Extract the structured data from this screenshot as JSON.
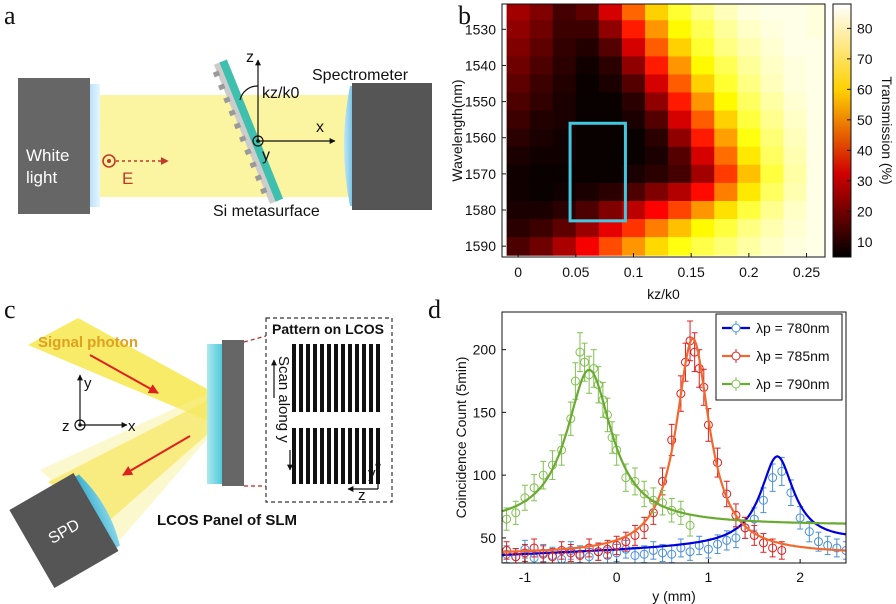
{
  "panels": {
    "a": {
      "label": "a",
      "source_label": "White light",
      "source_line1": "White",
      "source_line2": "light",
      "field_label": "E",
      "axis_z": "z",
      "axis_y": "y",
      "axis_x": "x",
      "kz_label": "kz/k0",
      "detector_label": "Spectrometer",
      "sample_label": "Si metasurface",
      "colors": {
        "beam": "#fbf4a0",
        "metasurface": "#3fbfae",
        "housing": "#666666",
        "field": "#c0392b"
      }
    },
    "b": {
      "label": "b"
    },
    "c": {
      "label": "c",
      "signal_label": "Signal photon",
      "axis_y": "y",
      "axis_z": "z",
      "axis_x": "x",
      "pattern_title": "Pattern on LCOS",
      "scan_label": "Scan along y",
      "inset_axis_y": "y",
      "inset_axis_z": "z",
      "panel_caption": "LCOS Panel of SLM",
      "detector_label": "SPD",
      "colors": {
        "beam": "#f3df38",
        "signal_text": "#e0a020",
        "arrow": "#e02020"
      }
    },
    "d": {
      "label": "d"
    }
  },
  "chart_data": [
    {
      "type": "heatmap",
      "panel": "b",
      "xlabel": "kz/k0",
      "ylabel": "Wavelength(nm)",
      "colorbar_label": "Transmission (%)",
      "x_ticks": [
        "0",
        "0.05",
        "0.1",
        "0.15",
        "0.2",
        "0.25"
      ],
      "y_ticks": [
        "1530",
        "1540",
        "1550",
        "1560",
        "1570",
        "1580",
        "1590"
      ],
      "colorbar_ticks": [
        "10",
        "20",
        "30",
        "40",
        "50",
        "60",
        "70",
        "80"
      ],
      "xlim": [
        -0.014,
        0.266
      ],
      "ylim": [
        1523,
        1593
      ],
      "clim": [
        5,
        88
      ],
      "colormap": "hot",
      "kz_values": [
        0,
        0.02,
        0.04,
        0.06,
        0.08,
        0.1,
        0.12,
        0.14,
        0.16,
        0.18,
        0.2,
        0.22,
        0.24,
        0.26
      ],
      "wavelengths": [
        1525,
        1530,
        1535,
        1540,
        1545,
        1550,
        1555,
        1560,
        1565,
        1570,
        1575,
        1580,
        1585,
        1590
      ],
      "transmission": [
        [
          24,
          20,
          13,
          16,
          30,
          47,
          60,
          70,
          77,
          82,
          85,
          86,
          86,
          85
        ],
        [
          22,
          18,
          12,
          12,
          22,
          38,
          53,
          65,
          73,
          79,
          83,
          85,
          86,
          85
        ],
        [
          20,
          16,
          11,
          9,
          15,
          30,
          46,
          60,
          70,
          77,
          81,
          84,
          86,
          86
        ],
        [
          18,
          14,
          10,
          7,
          10,
          22,
          38,
          53,
          65,
          73,
          79,
          83,
          85,
          86
        ],
        [
          16,
          12,
          9,
          6,
          8,
          15,
          30,
          46,
          60,
          70,
          77,
          82,
          85,
          86
        ],
        [
          14,
          11,
          8,
          6,
          6,
          10,
          22,
          38,
          53,
          65,
          74,
          80,
          84,
          86
        ],
        [
          12,
          9,
          8,
          6,
          6,
          8,
          15,
          30,
          46,
          60,
          71,
          78,
          83,
          86
        ],
        [
          10,
          8,
          7,
          6,
          6,
          6,
          10,
          22,
          38,
          54,
          67,
          76,
          82,
          86
        ],
        [
          8,
          7,
          7,
          6,
          6,
          6,
          8,
          15,
          30,
          48,
          63,
          74,
          81,
          86
        ],
        [
          7,
          6,
          6,
          6,
          6,
          8,
          10,
          13,
          24,
          42,
          58,
          71,
          80,
          86
        ],
        [
          7,
          6,
          7,
          8,
          10,
          14,
          20,
          26,
          36,
          50,
          63,
          74,
          81,
          86
        ],
        [
          8,
          8,
          10,
          14,
          20,
          27,
          35,
          43,
          53,
          62,
          71,
          78,
          83,
          86
        ],
        [
          10,
          12,
          16,
          23,
          32,
          41,
          50,
          58,
          65,
          71,
          77,
          81,
          84,
          86
        ],
        [
          14,
          18,
          25,
          34,
          44,
          53,
          61,
          67,
          72,
          76,
          80,
          83,
          85,
          86
        ]
      ],
      "annotation_box": {
        "x": [
          0.045,
          0.093
        ],
        "y": [
          1556,
          1583
        ],
        "color": "#40c8e0"
      }
    },
    {
      "type": "scatter",
      "panel": "d",
      "xlabel": "y (mm)",
      "ylabel": "Coincidence Count (5min)",
      "x_ticks": [
        "-1",
        "0",
        "1",
        "2"
      ],
      "y_ticks": [
        "50",
        "100",
        "150",
        "200"
      ],
      "xlim": [
        -1.25,
        2.5
      ],
      "ylim": [
        30,
        230
      ],
      "legend_position": "top-right",
      "series": [
        {
          "name": "λp = 780nm",
          "color": "#0000dd",
          "marker_color": "#4a90d9",
          "fit": {
            "center": 1.75,
            "width": 0.22,
            "baseline": 36,
            "amplitude": 70,
            "slope": 3
          },
          "x": [
            -1.2,
            -1.1,
            -1.0,
            -0.9,
            -0.8,
            -0.7,
            -0.6,
            -0.5,
            -0.4,
            -0.3,
            -0.2,
            -0.1,
            0.0,
            0.1,
            0.2,
            0.3,
            0.4,
            0.5,
            0.6,
            0.7,
            0.8,
            0.9,
            1.0,
            1.1,
            1.2,
            1.3,
            1.4,
            1.5,
            1.6,
            1.7,
            1.8,
            1.9,
            2.0,
            2.1,
            2.2,
            2.3,
            2.4,
            2.5
          ],
          "y": [
            37,
            35,
            41,
            34,
            38,
            36,
            33,
            40,
            37,
            35,
            39,
            36,
            38,
            41,
            36,
            37,
            40,
            38,
            37,
            42,
            39,
            44,
            41,
            45,
            48,
            50,
            58,
            65,
            80,
            98,
            103,
            86,
            66,
            55,
            47,
            44,
            42,
            40
          ]
        },
        {
          "name": "λp = 785nm",
          "color": "#f06a30",
          "marker_color": "#e02020",
          "fit": {
            "center": 0.83,
            "width": 0.22,
            "baseline": 37,
            "amplitude": 172,
            "slope": 0
          },
          "x": [
            -1.2,
            -1.1,
            -1.0,
            -0.9,
            -0.8,
            -0.7,
            -0.6,
            -0.5,
            -0.4,
            -0.3,
            -0.2,
            -0.1,
            0.0,
            0.1,
            0.2,
            0.3,
            0.4,
            0.5,
            0.6,
            0.7,
            0.75,
            0.8,
            0.85,
            0.9,
            0.95,
            1.0,
            1.1,
            1.2,
            1.3,
            1.4,
            1.5,
            1.6,
            1.7,
            1.8
          ],
          "y": [
            40,
            35,
            38,
            42,
            37,
            35,
            40,
            38,
            36,
            42,
            39,
            41,
            44,
            47,
            52,
            58,
            70,
            95,
            128,
            165,
            190,
            207,
            198,
            185,
            170,
            140,
            110,
            85,
            68,
            58,
            52,
            46,
            42,
            40
          ]
        },
        {
          "name": "λp = 790nm",
          "color": "#6aaa30",
          "marker_color": "#80c050",
          "fit": {
            "center": -0.3,
            "width": 0.3,
            "baseline": 60,
            "amplitude": 124,
            "slope": 0
          },
          "x": [
            -1.2,
            -1.1,
            -1.0,
            -0.9,
            -0.8,
            -0.7,
            -0.6,
            -0.5,
            -0.45,
            -0.4,
            -0.35,
            -0.3,
            -0.25,
            -0.2,
            -0.15,
            -0.1,
            -0.05,
            0.0,
            0.1,
            0.2,
            0.3,
            0.4,
            0.5,
            0.6,
            0.7,
            0.8
          ],
          "y": [
            65,
            70,
            82,
            90,
            100,
            108,
            120,
            145,
            175,
            198,
            190,
            180,
            185,
            172,
            160,
            148,
            130,
            120,
            98,
            95,
            85,
            80,
            78,
            72,
            70,
            60
          ]
        }
      ]
    }
  ]
}
